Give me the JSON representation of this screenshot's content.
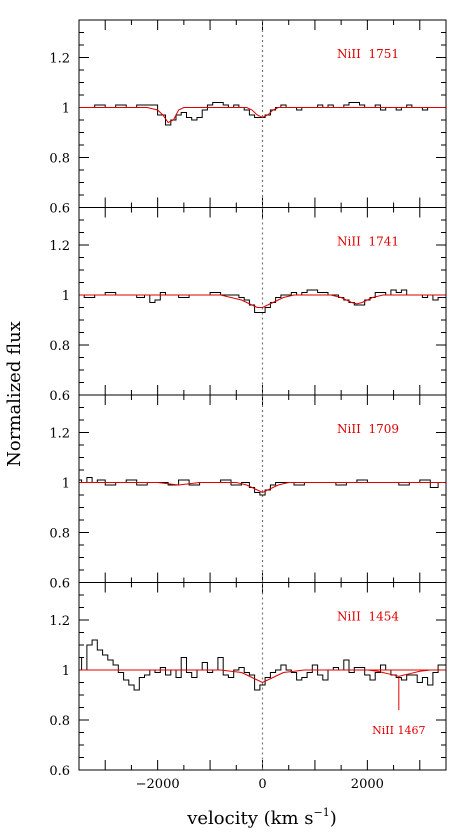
{
  "figure": {
    "ylabel": "Normalized flux",
    "xlabel": "velocity (km s",
    "xlabel_sup": "−1",
    "xlabel_end": ")"
  },
  "chart_data": [
    {
      "type": "line",
      "label": "NiII  1751",
      "xlim": [
        -3500,
        3500
      ],
      "ylim": [
        0.6,
        1.35
      ],
      "yticks": [
        "0.6",
        "0.8",
        "1",
        "1.2"
      ],
      "xticks": [],
      "zero_line": "dotted vertical at 0",
      "series": [
        {
          "kind": "data",
          "x": [
            -3500,
            -3300,
            -3100,
            -2900,
            -2700,
            -2500,
            -2300,
            -2100,
            -1900,
            -1800,
            -1700,
            -1600,
            -1500,
            -1400,
            -1300,
            -1200,
            -1100,
            -1000,
            -900,
            -800,
            -700,
            -600,
            -500,
            -400,
            -300,
            -200,
            -100,
            0,
            100,
            200,
            300,
            400,
            500,
            600,
            700,
            800,
            900,
            1000,
            1100,
            1200,
            1300,
            1400,
            1500,
            1600,
            1700,
            1800,
            1900,
            2000,
            2100,
            2200,
            2300,
            2400,
            2500,
            2600,
            2700,
            2800,
            2900,
            3000,
            3100,
            3200,
            3300,
            3400
          ],
          "y": [
            1.0,
            1.0,
            1.01,
            1.0,
            1.01,
            1.0,
            1.01,
            1.01,
            0.97,
            0.93,
            0.95,
            0.97,
            0.98,
            0.96,
            0.95,
            0.96,
            0.99,
            1.01,
            1.02,
            1.02,
            1.01,
            1.0,
            1.01,
            1.0,
            0.99,
            0.97,
            0.96,
            0.96,
            0.97,
            0.99,
            1.0,
            1.01,
            1.0,
            1.0,
            0.99,
            1.0,
            1.0,
            1.0,
            1.01,
            1.0,
            1.01,
            1.0,
            1.0,
            1.01,
            1.02,
            1.02,
            1.01,
            1.0,
            1.0,
            1.01,
            0.99,
            1.0,
            1.0,
            0.99,
            1.0,
            1.01,
            1.0,
            1.0,
            0.99,
            1.0,
            1.0,
            1.0
          ]
        },
        {
          "kind": "model",
          "x": [
            -3500,
            -2200,
            -2000,
            -1900,
            -1800,
            -1700,
            -1600,
            -1500,
            -1400,
            -1300,
            -1200,
            -1000,
            -600,
            -300,
            -200,
            -100,
            0,
            100,
            200,
            300,
            600,
            3500
          ],
          "y": [
            1.0,
            1.0,
            0.99,
            0.97,
            0.94,
            0.95,
            0.99,
            1.0,
            1.0,
            1.0,
            1.0,
            1.0,
            1.0,
            1.0,
            0.99,
            0.97,
            0.96,
            0.97,
            0.99,
            1.0,
            1.0,
            1.0
          ]
        }
      ]
    },
    {
      "type": "line",
      "label": "NiII  1741",
      "xlim": [
        -3500,
        3500
      ],
      "ylim": [
        0.6,
        1.35
      ],
      "yticks": [
        "0.6",
        "0.8",
        "1",
        "1.2"
      ],
      "xticks": [],
      "zero_line": "dotted vertical at 0",
      "series": [
        {
          "kind": "data",
          "x": [
            -3500,
            -3300,
            -3100,
            -2900,
            -2700,
            -2500,
            -2300,
            -2200,
            -2100,
            -2000,
            -1900,
            -1800,
            -1700,
            -1500,
            -1300,
            -1100,
            -900,
            -700,
            -500,
            -400,
            -300,
            -200,
            -100,
            0,
            100,
            200,
            300,
            400,
            500,
            600,
            700,
            800,
            900,
            1000,
            1100,
            1200,
            1300,
            1400,
            1500,
            1600,
            1700,
            1800,
            1900,
            2000,
            2100,
            2200,
            2300,
            2400,
            2500,
            2600,
            2700,
            2800,
            2900,
            3000,
            3100,
            3200,
            3300,
            3400
          ],
          "y": [
            1.0,
            0.99,
            1.0,
            1.01,
            1.0,
            1.0,
            0.99,
            1.0,
            0.97,
            0.98,
            1.01,
            1.0,
            1.0,
            0.99,
            1.0,
            1.0,
            1.01,
            1.0,
            1.0,
            0.99,
            0.98,
            0.96,
            0.93,
            0.93,
            0.95,
            0.97,
            0.99,
            1.0,
            1.0,
            1.01,
            1.0,
            1.01,
            1.02,
            1.02,
            1.01,
            1.01,
            1.0,
            1.0,
            0.99,
            0.98,
            0.97,
            0.96,
            0.96,
            0.98,
            0.99,
            1.01,
            1.01,
            1.0,
            1.02,
            1.01,
            1.02,
            1.0,
            1.0,
            1.0,
            0.99,
            1.0,
            0.98,
            0.99
          ]
        },
        {
          "kind": "model",
          "x": [
            -3500,
            -800,
            -600,
            -400,
            -300,
            -200,
            -100,
            0,
            100,
            200,
            300,
            400,
            600,
            1300,
            1500,
            1600,
            1700,
            1800,
            1900,
            2000,
            2100,
            2300,
            3500
          ],
          "y": [
            1.0,
            1.0,
            0.99,
            0.98,
            0.97,
            0.96,
            0.95,
            0.95,
            0.96,
            0.97,
            0.98,
            0.99,
            1.0,
            1.0,
            0.99,
            0.98,
            0.97,
            0.965,
            0.97,
            0.98,
            0.99,
            1.0,
            1.0
          ]
        }
      ]
    },
    {
      "type": "line",
      "label": "NiII  1709",
      "xlim": [
        -3500,
        3500
      ],
      "ylim": [
        0.6,
        1.35
      ],
      "yticks": [
        "0.6",
        "0.8",
        "1",
        "1.2"
      ],
      "xticks": [],
      "zero_line": "dotted vertical at 0",
      "series": [
        {
          "kind": "data",
          "x": [
            -3500,
            -3400,
            -3300,
            -3200,
            -3100,
            -2900,
            -2700,
            -2500,
            -2300,
            -2100,
            -1900,
            -1700,
            -1500,
            -1300,
            -1100,
            -900,
            -700,
            -500,
            -300,
            -200,
            -100,
            0,
            100,
            200,
            300,
            500,
            700,
            900,
            1100,
            1300,
            1500,
            1700,
            1900,
            2100,
            2300,
            2500,
            2700,
            2900,
            3100,
            3300,
            3400
          ],
          "y": [
            1.01,
            1.0,
            1.02,
            1.0,
            1.01,
            0.99,
            1.0,
            1.01,
            0.99,
            1.0,
            1.0,
            0.99,
            1.01,
            0.99,
            1.0,
            1.0,
            1.01,
            0.99,
            1.0,
            0.98,
            0.96,
            0.95,
            0.97,
            0.99,
            1.0,
            1.0,
            0.99,
            1.0,
            1.0,
            1.0,
            0.99,
            1.0,
            1.01,
            1.0,
            1.0,
            1.0,
            0.99,
            1.0,
            1.01,
            0.98,
            1.0
          ]
        },
        {
          "kind": "model",
          "x": [
            -3500,
            -2000,
            -1800,
            -1600,
            -1400,
            -1200,
            -800,
            -500,
            -300,
            -200,
            -100,
            0,
            100,
            200,
            300,
            500,
            3500
          ],
          "y": [
            1.0,
            1.0,
            0.995,
            0.99,
            0.995,
            1.0,
            1.0,
            1.0,
            0.99,
            0.98,
            0.97,
            0.96,
            0.97,
            0.98,
            0.99,
            1.0,
            1.0
          ]
        }
      ]
    },
    {
      "type": "line",
      "label": "NiII  1454",
      "xlim": [
        -3500,
        3500
      ],
      "ylim": [
        0.6,
        1.35
      ],
      "yticks": [
        "0.6",
        "0.8",
        "1",
        "1.2"
      ],
      "xticks": [
        "−2000",
        "0",
        "2000"
      ],
      "xtick_values": [
        -2000,
        0,
        2000
      ],
      "zero_line": "dotted vertical at 0",
      "annotation": {
        "label": "NiII 1467",
        "x": 2600,
        "y_top": 0.97,
        "y_bottom": 0.84
      },
      "series": [
        {
          "kind": "data",
          "x": [
            -3500,
            -3400,
            -3300,
            -3200,
            -3100,
            -3000,
            -2900,
            -2800,
            -2700,
            -2600,
            -2500,
            -2400,
            -2300,
            -2200,
            -2100,
            -2000,
            -1900,
            -1800,
            -1700,
            -1600,
            -1500,
            -1400,
            -1300,
            -1200,
            -1100,
            -1000,
            -900,
            -800,
            -700,
            -600,
            -500,
            -400,
            -300,
            -200,
            -100,
            0,
            100,
            200,
            300,
            400,
            500,
            600,
            700,
            800,
            900,
            1000,
            1100,
            1200,
            1300,
            1400,
            1500,
            1600,
            1700,
            1800,
            1900,
            2000,
            2100,
            2200,
            2300,
            2400,
            2500,
            2600,
            2700,
            2800,
            2900,
            3000,
            3100,
            3200,
            3300,
            3400
          ],
          "y": [
            1.05,
            1.0,
            1.1,
            1.12,
            1.08,
            1.06,
            1.04,
            1.02,
            0.99,
            0.96,
            0.94,
            0.92,
            0.97,
            0.98,
            1.0,
            0.99,
            1.01,
            0.98,
            1.0,
            0.97,
            1.05,
            0.99,
            0.97,
            1.0,
            1.03,
            0.99,
            1.0,
            1.05,
            0.98,
            0.97,
            1.0,
            1.01,
            0.99,
            0.98,
            0.92,
            0.94,
            0.97,
            0.99,
            1.0,
            1.02,
            1.0,
            0.99,
            0.96,
            0.97,
            0.99,
            1.02,
            0.98,
            0.96,
            1.0,
            1.01,
            1.0,
            1.04,
            0.99,
            1.01,
            1.01,
            0.98,
            0.96,
            0.99,
            1.02,
            1.0,
            0.98,
            0.97,
            0.96,
            0.98,
            0.98,
            0.95,
            0.97,
            0.94,
            0.99,
            1.02
          ]
        },
        {
          "kind": "model",
          "x": [
            -3500,
            -800,
            -600,
            -400,
            -300,
            -200,
            -100,
            0,
            100,
            200,
            300,
            400,
            600,
            800,
            3500
          ],
          "y": [
            1.0,
            1.0,
            0.995,
            0.99,
            0.98,
            0.97,
            0.96,
            0.95,
            0.96,
            0.97,
            0.98,
            0.99,
            0.995,
            1.0,
            1.0
          ]
        },
        {
          "kind": "model",
          "x": [
            2000,
            2200,
            2400,
            2500,
            2600,
            2700,
            2800,
            3000,
            3200
          ],
          "y": [
            1.0,
            0.995,
            0.985,
            0.98,
            0.975,
            0.98,
            0.985,
            0.995,
            1.0
          ]
        }
      ]
    }
  ]
}
